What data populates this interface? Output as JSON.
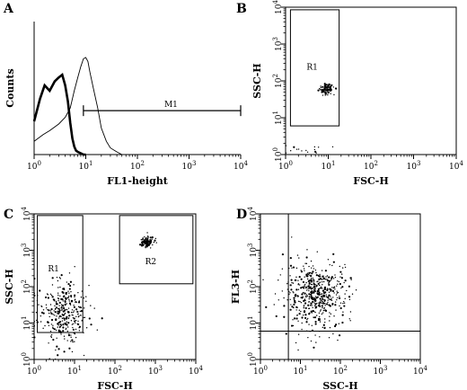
{
  "chart_data": [
    {
      "panel": "A",
      "type": "line",
      "xscale": "log",
      "xlim": [
        1,
        10000
      ],
      "ylim": [
        0,
        100
      ],
      "xlabel": "FL1-height",
      "ylabel": "Counts",
      "x_ticks": [
        "10^0",
        "10^1",
        "10^2",
        "10^3",
        "10^4"
      ],
      "series": [
        {
          "style": "thick",
          "x": [
            1.0,
            1.3,
            1.6,
            2.0,
            2.5,
            3.0,
            3.5,
            4.0,
            4.5,
            5.0,
            5.5,
            6.0,
            6.5,
            7.0,
            8.0,
            9.0,
            10.0
          ],
          "y": [
            25,
            42,
            52,
            48,
            55,
            58,
            60,
            52,
            40,
            24,
            12,
            6,
            3,
            2,
            1,
            0,
            0
          ]
        },
        {
          "style": "thin",
          "x": [
            1.0,
            1.5,
            2.0,
            3.0,
            4.0,
            5.0,
            6.0,
            7.0,
            8.0,
            9.0,
            10.0,
            11.0,
            12.0,
            14.0,
            17.0,
            20.0,
            25.0,
            30.0,
            40.0,
            50.0
          ],
          "y": [
            10,
            15,
            18,
            23,
            28,
            35,
            48,
            58,
            66,
            72,
            73,
            70,
            62,
            50,
            35,
            20,
            10,
            5,
            2,
            0
          ]
        }
      ],
      "annotations": [
        {
          "label": "M1",
          "x_range": [
            9,
            10000
          ],
          "y": 33
        }
      ]
    },
    {
      "panel": "B",
      "type": "scatter",
      "xscale": "log",
      "yscale": "log",
      "xlim": [
        1,
        10000
      ],
      "ylim": [
        1,
        10000
      ],
      "xlabel": "FSC-H",
      "ylabel": "SSC-H",
      "x_ticks": [
        "10^0",
        "10^1",
        "10^2",
        "10^3",
        "10^4"
      ],
      "y_ticks": [
        "10^0",
        "10^1",
        "10^2",
        "10^3",
        "10^4"
      ],
      "gates": [
        {
          "label": "R1",
          "x_range": [
            1.3,
            18
          ],
          "y_range": [
            6,
            8500
          ]
        }
      ],
      "clusters": [
        {
          "center": [
            9,
            60
          ],
          "spread": [
            0.09,
            0.07
          ],
          "count": 90
        },
        {
          "center": [
            2.5,
            1.3
          ],
          "spread": [
            0.3,
            0.05
          ],
          "count": 15
        }
      ]
    },
    {
      "panel": "C",
      "type": "scatter",
      "xscale": "log",
      "yscale": "log",
      "xlim": [
        1,
        10000
      ],
      "ylim": [
        1,
        10000
      ],
      "xlabel": "FSC-H",
      "ylabel": "SSC-H",
      "x_ticks": [
        "10^0",
        "10^1",
        "10^2",
        "10^3",
        "10^4"
      ],
      "y_ticks": [
        "10^0",
        "10^1",
        "10^2",
        "10^3",
        "10^4"
      ],
      "gates": [
        {
          "label": "R1",
          "x_range": [
            1.2,
            16
          ],
          "y_range": [
            5.5,
            9000
          ]
        },
        {
          "label": "R2",
          "x_range": [
            130,
            8500
          ],
          "y_range": [
            120,
            9000
          ]
        }
      ],
      "clusters": [
        {
          "center": [
            5,
            20
          ],
          "spread": [
            0.3,
            0.45
          ],
          "count": 320
        },
        {
          "center": [
            600,
            1700
          ],
          "spread": [
            0.09,
            0.08
          ],
          "count": 110
        }
      ]
    },
    {
      "panel": "D",
      "type": "scatter",
      "xscale": "log",
      "yscale": "log",
      "xlim": [
        1,
        10000
      ],
      "ylim": [
        1,
        10000
      ],
      "xlabel": "SSC-H",
      "ylabel": "FL3-H",
      "x_ticks": [
        "10^0",
        "10^1",
        "10^2",
        "10^3",
        "10^4"
      ],
      "y_ticks": [
        "10^0",
        "10^1",
        "10^2",
        "10^3",
        "10^4"
      ],
      "quadrant": {
        "x": 5,
        "y": 6
      },
      "clusters": [
        {
          "center": [
            25,
            60
          ],
          "spread": [
            0.4,
            0.45
          ],
          "count": 520
        }
      ]
    }
  ]
}
